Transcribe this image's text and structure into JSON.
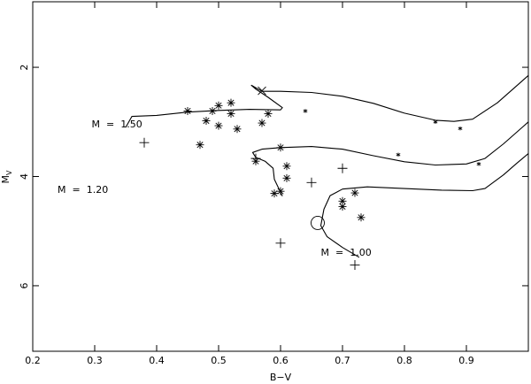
{
  "chart_data": {
    "type": "scatter",
    "title": "",
    "xlabel": "B−V",
    "ylabel": "M",
    "ylabel_sub": "V",
    "xlim": [
      0.2,
      1.0
    ],
    "ylim": [
      7.2,
      0.8
    ],
    "y_inverted": true,
    "x_ticks": [
      0.2,
      0.3,
      0.4,
      0.5,
      0.6,
      0.7,
      0.8,
      0.9
    ],
    "x_tick_labels": [
      "0.2",
      "0.3",
      "0.4",
      "0.5",
      "0.6",
      "0.7",
      "0.8",
      "0.9"
    ],
    "y_ticks": [
      2,
      4,
      6
    ],
    "y_tick_labels": [
      "2",
      "4",
      "6"
    ],
    "grid": false,
    "legend": "none",
    "tracks": [
      {
        "label": "M  =  1.50",
        "label_at": [
          0.295,
          3.1
        ],
        "points": [
          [
            0.35,
            3.1
          ],
          [
            0.36,
            2.9
          ],
          [
            0.4,
            2.88
          ],
          [
            0.45,
            2.82
          ],
          [
            0.5,
            2.79
          ],
          [
            0.55,
            2.77
          ],
          [
            0.6,
            2.78
          ],
          [
            0.603,
            2.74
          ],
          [
            0.58,
            2.55
          ],
          [
            0.56,
            2.4
          ],
          [
            0.553,
            2.33
          ],
          [
            0.57,
            2.44
          ],
          [
            0.6,
            2.44
          ],
          [
            0.65,
            2.46
          ],
          [
            0.7,
            2.53
          ],
          [
            0.75,
            2.66
          ],
          [
            0.8,
            2.84
          ],
          [
            0.85,
            2.97
          ],
          [
            0.88,
            2.99
          ],
          [
            0.91,
            2.95
          ],
          [
            0.95,
            2.65
          ],
          [
            0.98,
            2.35
          ],
          [
            1.0,
            2.15
          ]
        ]
      },
      {
        "label": "M  =  1.20",
        "label_at": [
          0.24,
          4.3
        ],
        "points": [
          [
            0.603,
            4.36
          ],
          [
            0.59,
            4.05
          ],
          [
            0.588,
            3.85
          ],
          [
            0.575,
            3.72
          ],
          [
            0.56,
            3.65
          ],
          [
            0.555,
            3.56
          ],
          [
            0.57,
            3.5
          ],
          [
            0.6,
            3.47
          ],
          [
            0.65,
            3.45
          ],
          [
            0.7,
            3.5
          ],
          [
            0.75,
            3.62
          ],
          [
            0.8,
            3.73
          ],
          [
            0.85,
            3.79
          ],
          [
            0.9,
            3.77
          ],
          [
            0.93,
            3.67
          ],
          [
            0.96,
            3.4
          ],
          [
            0.99,
            3.1
          ],
          [
            1.0,
            3.0
          ]
        ]
      },
      {
        "label": "M  =  1.00",
        "label_at": [
          0.665,
          5.45
        ],
        "points": [
          [
            0.727,
            5.48
          ],
          [
            0.7,
            5.3
          ],
          [
            0.675,
            5.1
          ],
          [
            0.665,
            4.9
          ],
          [
            0.67,
            4.6
          ],
          [
            0.68,
            4.35
          ],
          [
            0.7,
            4.23
          ],
          [
            0.74,
            4.19
          ],
          [
            0.8,
            4.22
          ],
          [
            0.86,
            4.25
          ],
          [
            0.91,
            4.26
          ],
          [
            0.93,
            4.22
          ],
          [
            0.96,
            3.97
          ],
          [
            0.98,
            3.77
          ],
          [
            1.0,
            3.58
          ]
        ]
      }
    ],
    "markers": {
      "asterisk": [
        [
          0.45,
          2.8
        ],
        [
          0.48,
          2.98
        ],
        [
          0.49,
          2.8
        ],
        [
          0.5,
          2.7
        ],
        [
          0.5,
          3.07
        ],
        [
          0.52,
          2.65
        ],
        [
          0.52,
          2.85
        ],
        [
          0.53,
          3.13
        ],
        [
          0.47,
          3.42
        ],
        [
          0.57,
          3.02
        ],
        [
          0.58,
          2.85
        ],
        [
          0.6,
          3.47
        ],
        [
          0.56,
          3.72
        ],
        [
          0.61,
          3.81
        ],
        [
          0.61,
          4.03
        ],
        [
          0.59,
          4.31
        ],
        [
          0.6,
          4.27
        ],
        [
          0.7,
          4.45
        ],
        [
          0.7,
          4.55
        ],
        [
          0.72,
          4.3
        ],
        [
          0.73,
          4.75
        ]
      ],
      "small_star": [
        [
          0.64,
          2.8
        ],
        [
          0.85,
          3.0
        ],
        [
          0.89,
          3.12
        ],
        [
          0.79,
          3.6
        ],
        [
          0.92,
          3.77
        ]
      ],
      "cross_x": [
        [
          0.57,
          2.43
        ]
      ],
      "plus": [
        [
          0.38,
          3.38
        ],
        [
          0.56,
          3.67
        ],
        [
          0.65,
          4.11
        ],
        [
          0.7,
          3.85
        ],
        [
          0.6,
          5.22
        ],
        [
          0.72,
          5.62
        ]
      ],
      "circle": [
        [
          0.66,
          4.85
        ]
      ]
    }
  }
}
